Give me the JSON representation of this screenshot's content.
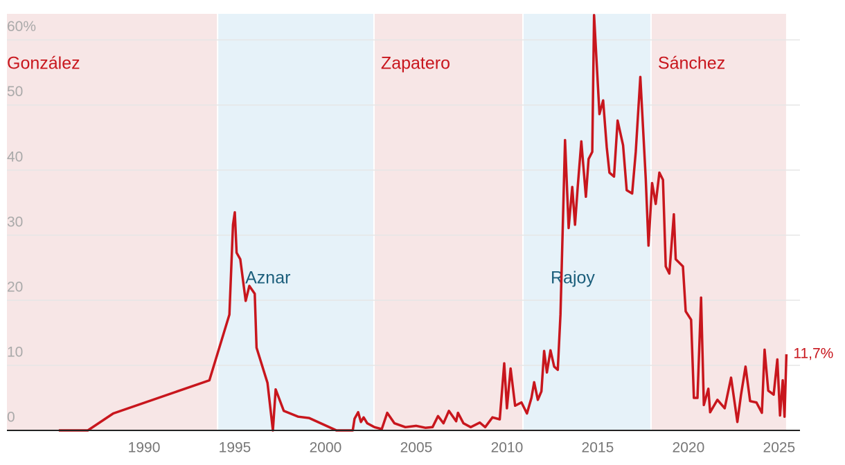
{
  "chart_data": {
    "type": "line",
    "x": [
      1985.3,
      1986.9,
      1988.3,
      1993.6,
      1994.7,
      1994.9,
      1995.0,
      1995.1,
      1995.3,
      1995.6,
      1995.8,
      1996.1,
      1996.2,
      1996.8,
      1997.1,
      1997.25,
      1997.7,
      1998.5,
      1999.1,
      2000.6,
      2001.5,
      2001.6,
      2001.8,
      2001.95,
      2002.1,
      2002.3,
      2002.7,
      2003.1,
      2003.4,
      2003.8,
      2004.4,
      2005.0,
      2005.5,
      2005.9,
      2006.2,
      2006.5,
      2006.8,
      2007.2,
      2007.3,
      2007.6,
      2008.0,
      2008.5,
      2008.8,
      2009.2,
      2009.6,
      2009.85,
      2010.0,
      2010.2,
      2010.45,
      2010.8,
      2011.1,
      2011.35,
      2011.5,
      2011.7,
      2011.9,
      2012.05,
      2012.2,
      2012.4,
      2012.6,
      2012.8,
      2012.95,
      2013.2,
      2013.4,
      2013.6,
      2013.75,
      2013.9,
      2014.1,
      2014.35,
      2014.5,
      2014.7,
      2014.8,
      2015.1,
      2015.3,
      2015.5,
      2015.65,
      2015.9,
      2016.1,
      2016.4,
      2016.6,
      2016.9,
      2017.1,
      2017.35,
      2017.65,
      2017.8,
      2018.0,
      2018.2,
      2018.4,
      2018.6,
      2018.75,
      2018.95,
      2019.2,
      2019.3,
      2019.7,
      2019.85,
      2020.15,
      2020.3,
      2020.5,
      2020.7,
      2020.85,
      2021.1,
      2021.2,
      2021.6,
      2022.0,
      2022.35,
      2022.7,
      2022.9,
      2023.15,
      2023.4,
      2023.75,
      2024.05,
      2024.2,
      2024.4,
      2024.7,
      2024.9,
      2025.05,
      2025.2,
      2025.3,
      2025.4
    ],
    "values": [
      0,
      0,
      2.6,
      7.7,
      17.8,
      31.6,
      33.5,
      27.3,
      26.3,
      19.9,
      22.2,
      21.0,
      12.7,
      7.3,
      0,
      6.3,
      3.0,
      2.1,
      1.9,
      0,
      0,
      1.8,
      2.8,
      1.3,
      2.0,
      1.1,
      0.5,
      0.2,
      2.7,
      1.1,
      0.5,
      0.7,
      0.4,
      0.5,
      2.2,
      1.1,
      3.0,
      1.4,
      2.7,
      1.1,
      0.5,
      1.2,
      0.5,
      2.0,
      1.7,
      10.3,
      3.4,
      9.5,
      3.8,
      4.3,
      2.6,
      5.0,
      7.4,
      4.7,
      6.0,
      12.2,
      8.9,
      12.3,
      9.8,
      9.3,
      17.8,
      44.6,
      31.1,
      37.4,
      31.6,
      37.4,
      44.4,
      35.9,
      41.7,
      42.8,
      63.8,
      48.6,
      50.7,
      43.5,
      39.6,
      39.0,
      47.6,
      43.8,
      36.9,
      36.4,
      42.8,
      54.3,
      38.7,
      28.4,
      38.0,
      34.8,
      39.6,
      38.5,
      25.2,
      24.1,
      33.2,
      26.3,
      25.2,
      18.3,
      17.0,
      5.0,
      5.0,
      20.4,
      3.9,
      6.4,
      2.8,
      4.7,
      3.4,
      8.1,
      1.3,
      5.5,
      9.8,
      4.5,
      4.3,
      2.7,
      12.4,
      6.1,
      5.5,
      10.9,
      2.3,
      7.7,
      2.1,
      11.7
    ],
    "value_labels": [
      null,
      null,
      null,
      null,
      null,
      null,
      null,
      null,
      null,
      null,
      null,
      null,
      null,
      null,
      null,
      null,
      null,
      null,
      null,
      null,
      null,
      null,
      null,
      null,
      null,
      null,
      null,
      null,
      null,
      null,
      null,
      null,
      null,
      null,
      null,
      null,
      null,
      null,
      null,
      null,
      null,
      null,
      null,
      null,
      null,
      null,
      null,
      null,
      null,
      null,
      null,
      null,
      null,
      null,
      null,
      null,
      null,
      null,
      null,
      null,
      null,
      null,
      null,
      null,
      null,
      null,
      null,
      null,
      null,
      null,
      null,
      null,
      null,
      null,
      null,
      null,
      null,
      null,
      null,
      null,
      null,
      null,
      null,
      null,
      null,
      null,
      null,
      null,
      null,
      null,
      null,
      null,
      null,
      null,
      null,
      null,
      null,
      null,
      null,
      null,
      null,
      null,
      null,
      null,
      null,
      null,
      null,
      null,
      null,
      null,
      null,
      null,
      null,
      null,
      null,
      null,
      null,
      "11,7%"
    ],
    "color": "#c8161d",
    "xlim": [
      1982.44,
      2026.15
    ],
    "xticks": [
      1990,
      1995,
      2000,
      2005,
      2010,
      2015,
      2020,
      2025
    ],
    "ylim": [
      0,
      64
    ],
    "yticks": [
      0,
      10,
      20,
      30,
      40,
      50,
      {
        "value": 60,
        "label": "60%"
      }
    ],
    "grid": true,
    "periods": [
      {
        "name": "González",
        "start": 1982.44,
        "end": 1994.05,
        "color": "#f7e6e6",
        "label_color": "#c8161d"
      },
      {
        "name": "Aznar",
        "start": 1994.05,
        "end": 2002.67,
        "color": "#e6f2f9",
        "label_color": "#1b5e7b"
      },
      {
        "name": "Zapatero",
        "start": 2002.67,
        "end": 2010.88,
        "color": "#f7e6e6",
        "label_color": "#c8161d"
      },
      {
        "name": "Rajoy",
        "start": 2010.88,
        "end": 2017.94,
        "color": "#e6f2f9",
        "label_color": "#1b5e7b"
      },
      {
        "name": "Sánchez",
        "start": 2017.94,
        "end": 2025.42,
        "color": "#f7e6e6",
        "label_color": "#c8161d"
      }
    ]
  }
}
